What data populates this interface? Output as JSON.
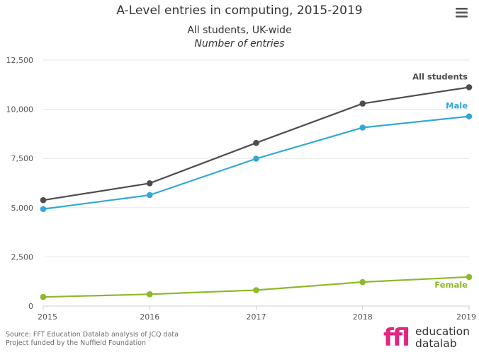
{
  "chart_data": {
    "type": "line",
    "title": "A-Level entries in computing, 2015-2019",
    "subtitle": "All students, UK-wide",
    "subtitle_units": "Number of entries",
    "x": [
      "2015",
      "2016",
      "2017",
      "2018",
      "2019"
    ],
    "y_ticks": [
      "0",
      "2,500",
      "5,000",
      "7,500",
      "10,000",
      "12,500"
    ],
    "ylim": [
      0,
      12500
    ],
    "grid": true,
    "legend": "end-of-line labels",
    "series": [
      {
        "name": "All students",
        "color": "#4d4d4d",
        "values": [
          5380,
          6240,
          8290,
          10290,
          11120
        ]
      },
      {
        "name": "Male",
        "color": "#33a8d8",
        "values": [
          4930,
          5640,
          7490,
          9070,
          9640
        ]
      },
      {
        "name": "Female",
        "color": "#8cb92a",
        "values": [
          460,
          600,
          810,
          1220,
          1480
        ]
      }
    ]
  },
  "credits": {
    "source": "Source: FFT Education Datalab analysis of JCQ data",
    "funding": "Project funded by the Nuffield Foundation"
  },
  "logo": {
    "mark": "ffl",
    "line1": "education",
    "line2": "datalab"
  },
  "menu": {
    "icon": "hamburger-menu-icon"
  }
}
